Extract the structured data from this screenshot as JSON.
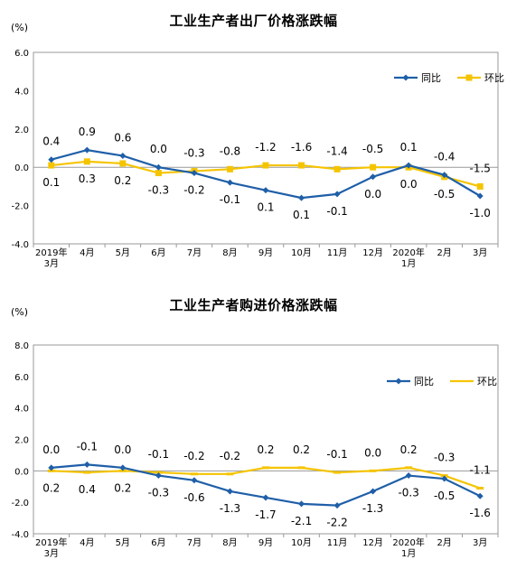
{
  "chart_data": [
    {
      "type": "line",
      "title": "工业生产者出厂价格涨跌幅",
      "unit": "(%)",
      "categories": [
        [
          "2019年",
          "3月"
        ],
        [
          "4月"
        ],
        [
          "5月"
        ],
        [
          "6月"
        ],
        [
          "7月"
        ],
        [
          "8月"
        ],
        [
          "9月"
        ],
        [
          "10月"
        ],
        [
          "11月"
        ],
        [
          "12月"
        ],
        [
          "2020年",
          "1月"
        ],
        [
          "2月"
        ],
        [
          "3月"
        ]
      ],
      "ylim": [
        -4.0,
        6.0
      ],
      "yticks": [
        "6.0",
        "4.0",
        "2.0",
        "0.0",
        "-2.0",
        "-4.0"
      ],
      "legend_position": "top-right",
      "series": [
        {
          "name": "同比",
          "color": "#1f5fa8",
          "marker": "diamond",
          "values": [
            0.4,
            0.9,
            0.6,
            0.0,
            -0.3,
            -0.8,
            -1.2,
            -1.6,
            -1.4,
            -0.5,
            0.1,
            -0.4,
            -1.5
          ]
        },
        {
          "name": "环比",
          "color": "#f5c400",
          "marker": "square",
          "values": [
            0.1,
            0.3,
            0.2,
            -0.3,
            -0.2,
            -0.1,
            0.1,
            0.1,
            -0.1,
            0.0,
            0.0,
            -0.5,
            -1.0
          ]
        }
      ]
    },
    {
      "type": "line",
      "title": "工业生产者购进价格涨跌幅",
      "unit": "(%)",
      "categories": [
        [
          "2019年",
          "3月"
        ],
        [
          "4月"
        ],
        [
          "5月"
        ],
        [
          "6月"
        ],
        [
          "7月"
        ],
        [
          "8月"
        ],
        [
          "9月"
        ],
        [
          "10月"
        ],
        [
          "11月"
        ],
        [
          "12月"
        ],
        [
          "2020年",
          "1月"
        ],
        [
          "2月"
        ],
        [
          "3月"
        ]
      ],
      "ylim": [
        -4.0,
        8.0
      ],
      "yticks": [
        "8.0",
        "6.0",
        "4.0",
        "2.0",
        "0.0",
        "-2.0",
        "-4.0"
      ],
      "legend_position": "top-right",
      "series": [
        {
          "name": "同比",
          "color": "#1f5fa8",
          "marker": "diamond",
          "values": [
            0.2,
            0.4,
            0.2,
            -0.3,
            -0.6,
            -1.3,
            -1.7,
            -2.1,
            -2.2,
            -1.3,
            -0.3,
            -0.5,
            -1.6
          ]
        },
        {
          "name": "环比",
          "color": "#f5c400",
          "marker": "dash",
          "values": [
            0.0,
            -0.1,
            0.0,
            -0.1,
            -0.2,
            -0.2,
            0.2,
            0.2,
            -0.1,
            0.0,
            0.2,
            -0.3,
            -1.1
          ]
        }
      ]
    }
  ]
}
